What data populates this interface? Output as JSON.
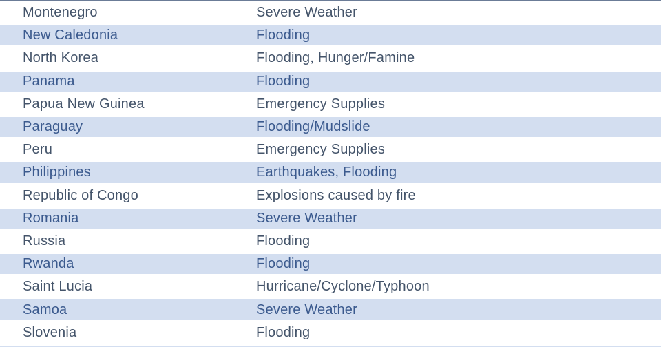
{
  "table": {
    "rows": [
      {
        "country": "Montenegro",
        "disaster": "Severe Weather"
      },
      {
        "country": "New Caledonia",
        "disaster": "Flooding"
      },
      {
        "country": "North Korea",
        "disaster": "Flooding, Hunger/Famine"
      },
      {
        "country": "Panama",
        "disaster": "Flooding"
      },
      {
        "country": "Papua New Guinea",
        "disaster": "Emergency Supplies"
      },
      {
        "country": "Paraguay",
        "disaster": "Flooding/Mudslide"
      },
      {
        "country": "Peru",
        "disaster": "Emergency Supplies"
      },
      {
        "country": "Philippines",
        "disaster": "Earthquakes, Flooding"
      },
      {
        "country": "Republic of Congo",
        "disaster": "Explosions caused by fire"
      },
      {
        "country": "Romania",
        "disaster": "Severe Weather"
      },
      {
        "country": "Russia",
        "disaster": "Flooding"
      },
      {
        "country": "Rwanda",
        "disaster": "Flooding"
      },
      {
        "country": "Saint Lucia",
        "disaster": "Hurricane/Cyclone/Typhoon"
      },
      {
        "country": "Samoa",
        "disaster": "Severe Weather"
      },
      {
        "country": "Slovenia",
        "disaster": "Flooding"
      }
    ]
  },
  "theme": {
    "band_fill": "#d3def0",
    "row_fill": "#ffffff",
    "text_color_plain_row": "#44546a",
    "text_color_banded_row": "#3b5a8e",
    "top_rule_color": "#6b7c97",
    "separator_color": "#ffffff"
  }
}
